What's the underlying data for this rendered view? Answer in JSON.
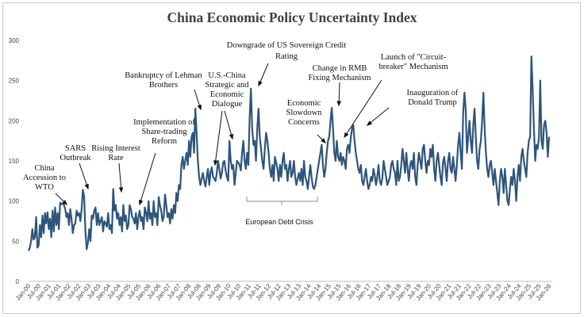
{
  "chart_data": {
    "type": "line",
    "title": "China Economic Policy Uncertainty Index",
    "xlabel": "",
    "ylabel": "",
    "ylim": [
      0,
      300
    ],
    "yticks": [
      0,
      50,
      100,
      150,
      200,
      250,
      300
    ],
    "grid": false,
    "legend": "none",
    "line_color": "#2e557a",
    "xtick_labels": [
      "Jan-00",
      "Jul-00",
      "Jan-01",
      "Jul-01",
      "Jan-02",
      "Jul-02",
      "Jan-03",
      "Jul-03",
      "Jan-04",
      "Jul-04",
      "Jan-05",
      "Jul-05",
      "Jan-06",
      "Jul-06",
      "Jan-07",
      "Jul-07",
      "Jan-08",
      "Jul-08",
      "Jan-09",
      "Jul-09",
      "Jan-10",
      "Jul-10",
      "Jan-11",
      "Jul-11",
      "Jan-12",
      "Jul-12",
      "Jan-13",
      "Jul-13",
      "Jan-14",
      "Jul-14",
      "Jan-15",
      "Jul-15",
      "Jan-16",
      "Jul-16",
      "Jan-17",
      "Jul-17",
      "Jan-18",
      "Jul-18",
      "Jan-19",
      "Jul-19",
      "Jan-20",
      "Jul-20",
      "Jan-21",
      "Jul-21",
      "Jan-22",
      "Jul-22",
      "Jan-23",
      "Jul-23",
      "Jan-24",
      "Jul-24",
      "Jan-25",
      "Jul-25",
      "Jan-26"
    ],
    "series": [
      {
        "x_start": "Jan-00",
        "frequency": "monthly",
        "values": [
          38,
          42,
          50,
          65,
          52,
          55,
          80,
          42,
          45,
          70,
          55,
          82,
          60,
          85,
          72,
          86,
          65,
          78,
          55,
          88,
          62,
          92,
          70,
          85,
          65,
          98,
          96,
          97,
          95,
          90,
          80,
          85,
          70,
          90,
          78,
          60,
          70,
          72,
          88,
          82,
          85,
          75,
          90,
          114,
          105,
          62,
          40,
          48,
          65,
          50,
          82,
          78,
          88,
          92,
          70,
          85,
          70,
          75,
          80,
          62,
          75,
          72,
          68,
          85,
          65,
          70,
          60,
          115,
          88,
          95,
          78,
          85,
          70,
          80,
          62,
          95,
          75,
          82,
          65,
          70,
          95,
          90,
          80,
          78,
          72,
          85,
          65,
          80,
          88,
          75,
          80,
          65,
          92,
          85,
          75,
          100,
          78,
          85,
          70,
          100,
          80,
          85,
          70,
          105,
          95,
          88,
          75,
          80,
          108,
          95,
          80,
          85,
          72,
          90,
          78,
          95,
          85,
          110,
          100,
          120,
          115,
          145,
          155,
          140,
          150,
          160,
          145,
          175,
          155,
          180,
          185,
          160,
          215,
          185,
          150,
          130,
          120,
          128,
          135,
          125,
          118,
          130,
          140,
          120,
          135,
          142,
          130,
          128,
          125,
          135,
          150,
          140,
          128,
          135,
          148,
          150,
          138,
          130,
          125,
          175,
          150,
          140,
          145,
          120,
          135,
          150,
          148,
          145,
          138,
          160,
          175,
          150,
          140,
          160,
          145,
          205,
          240,
          190,
          170,
          175,
          150,
          190,
          215,
          180,
          165,
          150,
          140,
          165,
          185,
          175,
          160,
          140,
          130,
          145,
          125,
          155,
          148,
          140,
          125,
          145,
          130,
          150,
          160,
          140,
          145,
          125,
          140,
          150,
          130,
          135,
          150,
          130,
          120,
          128,
          135,
          125,
          140,
          120,
          150,
          130,
          125,
          115,
          130,
          145,
          130,
          118,
          115,
          120,
          130,
          140,
          150,
          160,
          170,
          145,
          130,
          140,
          160,
          175,
          180,
          200,
          216,
          190,
          160,
          150,
          175,
          155,
          150,
          160,
          145,
          155,
          150,
          140,
          165,
          170,
          160,
          178,
          190,
          195,
          175,
          160,
          150,
          140,
          135,
          145,
          125,
          120,
          130,
          140,
          125,
          115,
          120,
          130,
          125,
          140,
          132,
          120,
          130,
          145,
          125,
          120,
          128,
          150,
          140,
          130,
          120,
          125,
          130,
          145,
          150,
          140,
          135,
          120,
          150,
          125,
          130,
          145,
          165,
          150,
          135,
          160,
          140,
          125,
          145,
          150,
          140,
          160,
          130,
          120,
          145,
          160,
          150,
          140,
          165,
          170,
          150,
          135,
          150,
          145,
          165,
          155,
          170,
          140,
          125,
          150,
          160,
          145,
          130,
          120,
          148,
          155,
          140,
          125,
          150,
          160,
          140,
          135,
          155,
          140,
          125,
          145,
          170,
          185,
          160,
          140,
          210,
          235,
          215,
          160,
          180,
          200,
          175,
          160,
          195,
          215,
          180,
          150,
          140,
          165,
          175,
          200,
          235,
          190,
          160,
          140,
          130,
          145,
          150,
          135,
          120,
          140,
          125,
          110,
          95,
          125,
          140,
          130,
          110,
          140,
          120,
          100,
          95,
          115,
          130,
          120,
          140,
          125,
          100,
          130,
          145,
          125,
          155,
          165,
          150,
          140,
          130,
          160,
          175,
          180,
          280,
          240,
          190,
          150,
          170,
          165,
          180,
          250,
          175,
          165,
          195,
          200,
          185,
          155,
          180
        ]
      }
    ],
    "annotations": [
      {
        "lines": [
          "China",
          "Accession to",
          "WTO"
        ]
      },
      {
        "lines": [
          "SARS",
          "Outbreak"
        ]
      },
      {
        "lines": [
          "Rising Interest",
          "Rate"
        ]
      },
      {
        "lines": [
          "Implementation of",
          "Share-trading",
          "Reform"
        ]
      },
      {
        "lines": [
          "Bankruptcy of Lehman",
          "Brothers"
        ]
      },
      {
        "lines": [
          "U.S.-China",
          "Strategic and",
          "Economic",
          "Dialogue"
        ]
      },
      {
        "lines": [
          "Downgrade of US Sovereign Credit",
          "Rating"
        ]
      },
      {
        "lines": [
          "European Debt Crisis"
        ]
      },
      {
        "lines": [
          "Economic",
          "Slowdown",
          "Concerns"
        ]
      },
      {
        "lines": [
          "Change in RMB",
          "Fixing Mechanism"
        ]
      },
      {
        "lines": [
          "Launch of \"Circuit-",
          "breaker\" Mechanism"
        ]
      },
      {
        "lines": [
          "Inauguration of",
          "Donald Trump"
        ]
      }
    ]
  }
}
